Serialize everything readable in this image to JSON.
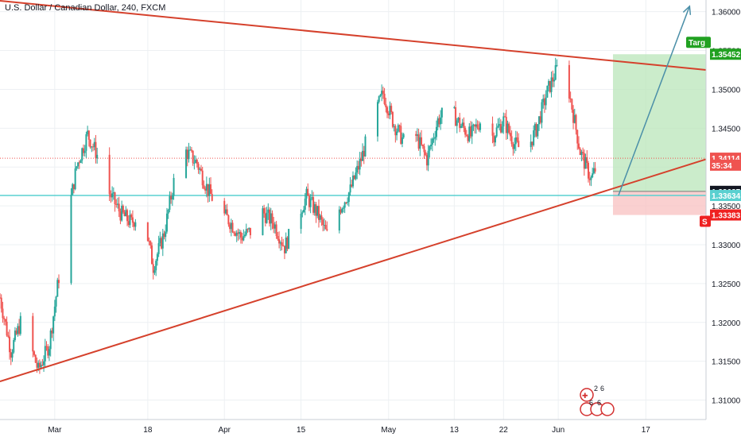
{
  "header": {
    "title": "U.S. Dollar / Canadian Dollar, 240, FXCM"
  },
  "colors": {
    "up": "#26a69a",
    "down": "#ef5350",
    "trendline": "#d5412c",
    "arrow": "#4b8fa8",
    "support": "#5ad0d0",
    "target_zone": "#b9e6b9",
    "stop_zone": "#f8c0c0",
    "grid": "#edf0f3"
  },
  "chart_data": {
    "type": "candlestick",
    "symbol": "USDCAD",
    "interval": "240",
    "source": "FXCM",
    "y_axis": {
      "range": [
        1.3075,
        1.3615
      ],
      "ticks": [
        "1.36000",
        "1.35500",
        "1.35000",
        "1.34500",
        "1.34000",
        "1.33500",
        "1.33000",
        "1.32500",
        "1.32000",
        "1.31500",
        "1.31000"
      ]
    },
    "x_axis": {
      "range_days": [
        "2019-02-19",
        "2019-06-28"
      ],
      "ticks": [
        {
          "label": "Mar",
          "date": "2019-03-01"
        },
        {
          "label": "18",
          "date": "2019-03-18"
        },
        {
          "label": "Apr",
          "date": "2019-04-01"
        },
        {
          "label": "15",
          "date": "2019-04-15"
        },
        {
          "label": "May",
          "date": "2019-05-01"
        },
        {
          "label": "13",
          "date": "2019-05-13"
        },
        {
          "label": "22",
          "date": "2019-05-22"
        },
        {
          "label": "Jun",
          "date": "2019-06-01"
        },
        {
          "label": "17",
          "date": "2019-06-17"
        }
      ]
    },
    "price_path": [
      [
        "2019-02-19",
        1.3232
      ],
      [
        "2019-02-21",
        1.3163
      ],
      [
        "2019-02-23",
        1.3205
      ],
      [
        "2019-02-26",
        1.3138
      ],
      [
        "2019-02-28",
        1.3172
      ],
      [
        "2019-03-03",
        1.332
      ],
      [
        "2019-03-05",
        1.3401
      ],
      [
        "2019-03-07",
        1.3442
      ],
      [
        "2019-03-09",
        1.3412
      ],
      [
        "2019-03-11",
        1.3366
      ],
      [
        "2019-03-13",
        1.3341
      ],
      [
        "2019-03-15",
        1.3328
      ],
      [
        "2019-03-17",
        1.3345
      ],
      [
        "2019-03-19",
        1.3272
      ],
      [
        "2019-03-21",
        1.3315
      ],
      [
        "2019-03-23",
        1.339
      ],
      [
        "2019-03-25",
        1.342
      ],
      [
        "2019-03-27",
        1.3405
      ],
      [
        "2019-03-29",
        1.337
      ],
      [
        "2019-03-31",
        1.3345
      ],
      [
        "2019-04-02",
        1.333
      ],
      [
        "2019-04-04",
        1.331
      ],
      [
        "2019-04-06",
        1.3318
      ],
      [
        "2019-04-08",
        1.3342
      ],
      [
        "2019-04-10",
        1.3328
      ],
      [
        "2019-04-12",
        1.3297
      ],
      [
        "2019-04-14",
        1.333
      ],
      [
        "2019-04-16",
        1.3362
      ],
      [
        "2019-04-18",
        1.334
      ],
      [
        "2019-04-20",
        1.3308
      ],
      [
        "2019-04-22",
        1.3346
      ],
      [
        "2019-04-24",
        1.337
      ],
      [
        "2019-04-26",
        1.341
      ],
      [
        "2019-04-28",
        1.346
      ],
      [
        "2019-04-30",
        1.3495
      ],
      [
        "2019-05-02",
        1.3455
      ],
      [
        "2019-05-04",
        1.343
      ],
      [
        "2019-05-06",
        1.344
      ],
      [
        "2019-05-08",
        1.341
      ],
      [
        "2019-05-10",
        1.346
      ],
      [
        "2019-05-12",
        1.3478
      ],
      [
        "2019-05-14",
        1.3455
      ],
      [
        "2019-05-16",
        1.344
      ],
      [
        "2019-05-18",
        1.3462
      ],
      [
        "2019-05-20",
        1.344
      ],
      [
        "2019-05-22",
        1.346
      ],
      [
        "2019-05-24",
        1.343
      ],
      [
        "2019-05-26",
        1.3418
      ],
      [
        "2019-05-28",
        1.3449
      ],
      [
        "2019-05-30",
        1.3497
      ],
      [
        "2019-06-01",
        1.353
      ],
      [
        "2019-06-03",
        1.3496
      ],
      [
        "2019-06-05",
        1.342
      ],
      [
        "2019-06-07",
        1.3384
      ],
      [
        "2019-06-09",
        1.3418
      ]
    ],
    "trendlines": [
      {
        "name": "upper-resistance",
        "from": [
          "2019-02-19",
          1.3614
        ],
        "to": [
          "2019-06-28",
          1.3525
        ]
      },
      {
        "name": "lower-support",
        "from": [
          "2019-02-19",
          1.3124
        ],
        "to": [
          "2019-06-28",
          1.341
        ]
      }
    ],
    "horizontal_lines": [
      {
        "name": "support",
        "price": 1.33634
      }
    ],
    "position": {
      "start": "2019-06-11",
      "end": "2019-06-28",
      "entry": 1.33687,
      "target": 1.35452,
      "stop": 1.33383
    },
    "projection_arrow": {
      "from": [
        "2019-06-12",
        1.33634
      ],
      "to": [
        "2019-06-25",
        1.3607
      ]
    },
    "price_labels": [
      {
        "name": "target",
        "text": "1.35452",
        "price": 1.35452,
        "color": "#21a121"
      },
      {
        "name": "last",
        "text": "1.34114",
        "price": 1.34114,
        "color": "#ef5350"
      },
      {
        "name": "countdown",
        "text": "35:34",
        "price": 1.34024,
        "color": "#ef5350"
      },
      {
        "name": "entry",
        "text": "1.33687",
        "price": 1.33687,
        "color": "#131722"
      },
      {
        "name": "support",
        "text": "1.33634",
        "price": 1.33634,
        "color": "#5ad0d0"
      },
      {
        "name": "stop",
        "text": "1.33383",
        "price": 1.33383,
        "color": "#ef2121"
      }
    ],
    "target_tag_text": "Targ",
    "stop_tag_text": "S",
    "last_price": 1.34114,
    "grid": true
  },
  "events": {
    "country_glyph": "🇨🇦",
    "counts": [
      "2",
      "6",
      "6",
      "6"
    ]
  }
}
